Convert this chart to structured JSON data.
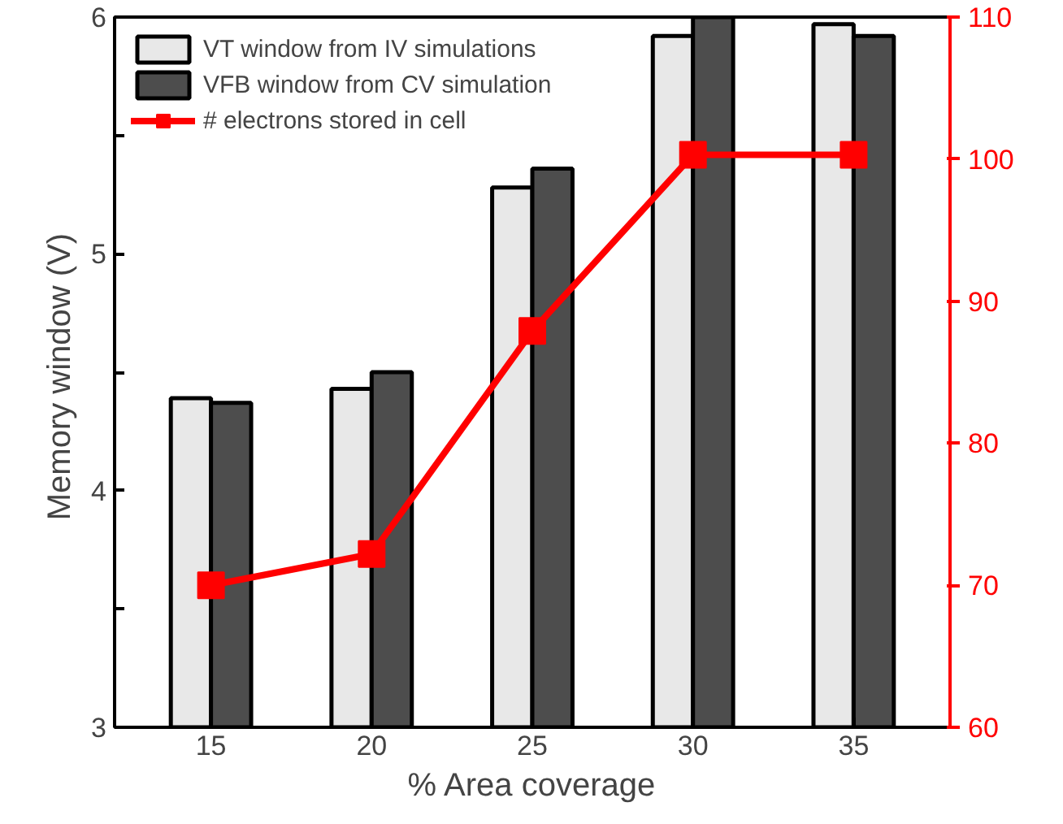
{
  "chart_data": {
    "type": "bar",
    "categories": [
      "15",
      "20",
      "25",
      "30",
      "35"
    ],
    "xlabel": "% Area coverage",
    "ylabel": "Memory window  (V)",
    "ylim": [
      3,
      6
    ],
    "yticks": [
      3,
      {
        "value": 3.5,
        "label": null
      },
      4,
      {
        "value": 4.5,
        "label": null
      },
      5,
      {
        "value": 5.5,
        "label": null
      },
      6
    ],
    "y2lim": [
      60,
      110
    ],
    "y2ticks": [
      60,
      70,
      80,
      90,
      100,
      110
    ],
    "grid": false,
    "legend": "top left",
    "marker": "square",
    "line_style": "solid",
    "series": [
      {
        "name": "VT window from IV simulations",
        "color": "#e8e8e8",
        "values": [
          4.39,
          4.43,
          5.28,
          5.92,
          5.97
        ]
      },
      {
        "name": "VFB window from CV simulation",
        "color": "#4d4d4d",
        "values": [
          4.37,
          4.5,
          5.36,
          6.0,
          5.92
        ]
      },
      {
        "name": "# electrons stored in cell",
        "type": "line",
        "axis": "y2",
        "color": "#ff0000",
        "values": [
          70,
          72.2,
          87.9,
          100.3,
          100.3
        ]
      }
    ]
  }
}
